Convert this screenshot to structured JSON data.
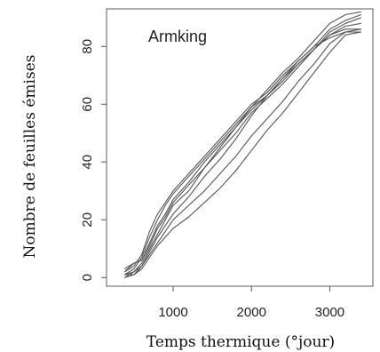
{
  "chart_data": {
    "type": "line",
    "title": "",
    "annotation": "Armking",
    "xlabel": "Temps thermique (°jour)",
    "ylabel": "Nombre de feuilles émises",
    "xlim": [
      150,
      3550
    ],
    "ylim": [
      -3,
      93
    ],
    "xticks": [
      1000,
      2000,
      3000
    ],
    "yticks": [
      0,
      20,
      40,
      60,
      80
    ],
    "grid": false,
    "series": [
      {
        "x": [
          380,
          500,
          600,
          700,
          800,
          900,
          1000,
          1200,
          1400,
          1600,
          1800,
          2000,
          2200,
          2400,
          2600,
          2800,
          3000,
          3200,
          3400
        ],
        "y": [
          2,
          4,
          8,
          16,
          22,
          26,
          30,
          36,
          42,
          48,
          54,
          60,
          64,
          70,
          75,
          80,
          86,
          89,
          91
        ]
      },
      {
        "x": [
          380,
          500,
          600,
          700,
          800,
          900,
          1000,
          1200,
          1400,
          1600,
          1800,
          2000,
          2200,
          2400,
          2600,
          2800,
          3000,
          3200,
          3400
        ],
        "y": [
          1,
          3,
          7,
          14,
          20,
          25,
          29,
          35,
          41,
          47,
          53,
          59,
          65,
          71,
          76,
          82,
          88,
          91,
          92
        ]
      },
      {
        "x": [
          380,
          500,
          600,
          700,
          800,
          900,
          1000,
          1200,
          1400,
          1600,
          1800,
          2000,
          2200,
          2400,
          2600,
          2800,
          3000,
          3200,
          3400
        ],
        "y": [
          3,
          5,
          6,
          12,
          18,
          22,
          27,
          33,
          40,
          46,
          52,
          58,
          63,
          69,
          74,
          79,
          84,
          87,
          88
        ]
      },
      {
        "x": [
          380,
          500,
          600,
          700,
          800,
          900,
          1000,
          1200,
          1400,
          1600,
          1800,
          2000,
          2200,
          2400,
          2600,
          2800,
          3000,
          3200,
          3400
        ],
        "y": [
          2,
          5,
          6,
          11,
          17,
          21,
          26,
          32,
          38,
          45,
          52,
          59,
          63,
          68,
          74,
          79,
          85,
          88,
          90
        ]
      },
      {
        "x": [
          380,
          500,
          600,
          700,
          800,
          900,
          1000,
          1200,
          1400,
          1600,
          1800,
          2000,
          2200,
          2400,
          2600,
          2800,
          3000,
          3200,
          3400
        ],
        "y": [
          1,
          2,
          5,
          10,
          15,
          20,
          25,
          30,
          38,
          44,
          50,
          57,
          62,
          67,
          73,
          79,
          84,
          86,
          86
        ]
      },
      {
        "x": [
          380,
          500,
          600,
          700,
          800,
          900,
          1000,
          1200,
          1400,
          1600,
          1800,
          2000,
          2200,
          2400,
          2600,
          2800,
          3000,
          3200,
          3400
        ],
        "y": [
          0,
          1,
          4,
          9,
          14,
          18,
          22,
          28,
          35,
          41,
          48,
          56,
          63,
          69,
          75,
          80,
          83,
          85,
          85
        ]
      },
      {
        "x": [
          380,
          500,
          600,
          700,
          800,
          900,
          1000,
          1200,
          1400,
          1600,
          1800,
          2000,
          2200,
          2400,
          2600,
          2800,
          3000,
          3200,
          3400
        ],
        "y": [
          0,
          2,
          4,
          8,
          12,
          16,
          20,
          25,
          30,
          36,
          42,
          49,
          55,
          61,
          68,
          74,
          81,
          85,
          86
        ]
      },
      {
        "x": [
          380,
          500,
          600,
          700,
          800,
          900,
          1000,
          1200,
          1400,
          1600,
          1800,
          2000,
          2200,
          2400,
          2600,
          2800,
          3000,
          3200,
          3400
        ],
        "y": [
          1,
          1,
          3,
          7,
          11,
          14,
          17,
          21,
          26,
          31,
          37,
          44,
          51,
          57,
          64,
          71,
          78,
          84,
          85
        ]
      }
    ]
  }
}
